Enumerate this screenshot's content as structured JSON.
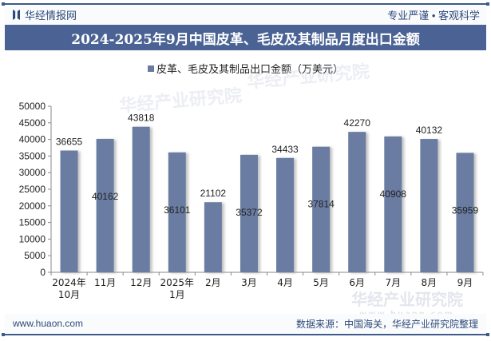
{
  "header": {
    "brand": "华经情报网",
    "slogan": "专业严谨 • 客观科学",
    "title": "2024-2025年9月中国皮革、毛皮及其制品月度出口金额"
  },
  "legend": {
    "label": "皮革、毛皮及其制品出口金额（万美元）",
    "color": "#6a7ba2"
  },
  "watermark": {
    "text": "华经产业研究院",
    "url": "www.huaon.com"
  },
  "footer": {
    "website": "www.huaon.com",
    "source": "数据来源：中国海关，华经产业研究院整理"
  },
  "chart_data": {
    "type": "bar",
    "title": "2024-2025年9月中国皮革、毛皮及其制品月度出口金额",
    "categories": [
      "2024年\n10月",
      "11月",
      "12月",
      "2025年\n1月",
      "2月",
      "3月",
      "4月",
      "5月",
      "6月",
      "7月",
      "8月",
      "9月"
    ],
    "series": [
      {
        "name": "皮革、毛皮及其制品出口金额（万美元）",
        "values": [
          36655,
          40162,
          43818,
          36101,
          21102,
          35372,
          34433,
          37814,
          42270,
          40908,
          40132,
          35959
        ]
      }
    ],
    "label_position": [
      "above",
      "inside",
      "above",
      "inside",
      "above",
      "inside",
      "above",
      "inside",
      "above",
      "inside",
      "above",
      "inside"
    ],
    "xlabel": "",
    "ylabel": "",
    "ylim": [
      0,
      50000
    ],
    "yticks": [
      0,
      5000,
      10000,
      15000,
      20000,
      25000,
      30000,
      35000,
      40000,
      45000,
      50000
    ],
    "grid": false,
    "legend_position": "top",
    "bar_color": "#6a7ba2"
  }
}
